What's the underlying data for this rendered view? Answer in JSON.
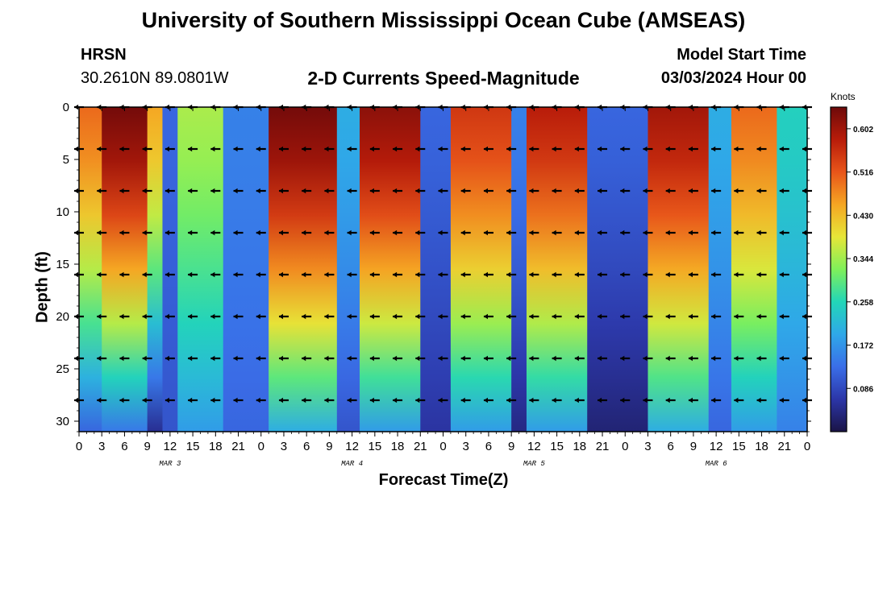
{
  "title": "University of Southern Mississippi Ocean Cube (AMSEAS)",
  "station": "HRSN",
  "coordinates": "30.2610N  89.0801W",
  "subtitle": "2-D Currents Speed-Magnitude",
  "model_start_label": "Model Start Time",
  "model_start_value": "03/03/2024 Hour 00",
  "chart_data": {
    "type": "heatmap",
    "title": "2-D Currents Speed-Magnitude",
    "xlabel": "Forecast Time(Z)",
    "ylabel": "Depth (ft)",
    "x_range_hours": [
      0,
      96
    ],
    "y_range_ft": [
      0,
      31
    ],
    "x_tick_labels": [
      "0",
      "3",
      "6",
      "9",
      "12",
      "15",
      "18",
      "21",
      "0",
      "3",
      "6",
      "9",
      "12",
      "15",
      "18",
      "21",
      "0",
      "3",
      "6",
      "9",
      "12",
      "15",
      "18",
      "21",
      "0",
      "3",
      "6",
      "9",
      "12",
      "15",
      "18",
      "21",
      "0"
    ],
    "y_tick_labels": [
      "0",
      "5",
      "10",
      "15",
      "20",
      "25",
      "30"
    ],
    "date_labels": [
      {
        "label": "MAR 3",
        "hour": 12
      },
      {
        "label": "MAR 4",
        "hour": 36
      },
      {
        "label": "MAR 5",
        "hour": 60
      },
      {
        "label": "MAR 6",
        "hour": 84
      }
    ],
    "colorbar": {
      "unit": "Knots",
      "range": [
        0.0,
        0.645
      ],
      "ticks": [
        "0.602",
        "0.516",
        "0.430",
        "0.344",
        "0.258",
        "0.172",
        "0.086"
      ],
      "tick_values": [
        0.602,
        0.516,
        0.43,
        0.344,
        0.258,
        0.172,
        0.086
      ]
    },
    "column_speed_profiles": [
      {
        "hour_start": 0,
        "hour_end": 3,
        "surface_kn": 0.5,
        "bottom_kn": 0.12
      },
      {
        "hour_start": 3,
        "hour_end": 9,
        "surface_kn": 0.64,
        "bottom_kn": 0.14
      },
      {
        "hour_start": 9,
        "hour_end": 11,
        "surface_kn": 0.45,
        "bottom_kn": 0.05
      },
      {
        "hour_start": 11,
        "hour_end": 13,
        "surface_kn": 0.12,
        "bottom_kn": 0.1
      },
      {
        "hour_start": 13,
        "hour_end": 19,
        "surface_kn": 0.35,
        "bottom_kn": 0.18
      },
      {
        "hour_start": 19,
        "hour_end": 25,
        "surface_kn": 0.15,
        "bottom_kn": 0.12
      },
      {
        "hour_start": 25,
        "hour_end": 34,
        "surface_kn": 0.64,
        "bottom_kn": 0.2
      },
      {
        "hour_start": 34,
        "hour_end": 37,
        "surface_kn": 0.2,
        "bottom_kn": 0.1
      },
      {
        "hour_start": 37,
        "hour_end": 45,
        "surface_kn": 0.62,
        "bottom_kn": 0.18
      },
      {
        "hour_start": 45,
        "hour_end": 49,
        "surface_kn": 0.12,
        "bottom_kn": 0.06
      },
      {
        "hour_start": 49,
        "hour_end": 57,
        "surface_kn": 0.55,
        "bottom_kn": 0.18
      },
      {
        "hour_start": 57,
        "hour_end": 59,
        "surface_kn": 0.15,
        "bottom_kn": 0.04
      },
      {
        "hour_start": 59,
        "hour_end": 67,
        "surface_kn": 0.58,
        "bottom_kn": 0.18
      },
      {
        "hour_start": 67,
        "hour_end": 75,
        "surface_kn": 0.12,
        "bottom_kn": 0.03
      },
      {
        "hour_start": 75,
        "hour_end": 83,
        "surface_kn": 0.6,
        "bottom_kn": 0.2
      },
      {
        "hour_start": 83,
        "hour_end": 86,
        "surface_kn": 0.2,
        "bottom_kn": 0.12
      },
      {
        "hour_start": 86,
        "hour_end": 92,
        "surface_kn": 0.5,
        "bottom_kn": 0.18
      },
      {
        "hour_start": 92,
        "hour_end": 96,
        "surface_kn": 0.25,
        "bottom_kn": 0.15
      }
    ],
    "vector_depths_ft": [
      0,
      4,
      8,
      12,
      16,
      20,
      24,
      28
    ],
    "vector_hours": [
      0,
      3,
      6,
      9,
      12,
      15,
      18,
      21,
      24,
      27,
      30,
      33,
      36,
      39,
      42,
      45,
      48,
      51,
      54,
      57,
      60,
      63,
      66,
      69,
      72,
      75,
      78,
      81,
      84,
      87,
      90,
      93,
      96
    ],
    "vector_direction_deg": 180
  },
  "colors": {
    "colormap": [
      "#1a1446",
      "#2c36a8",
      "#3a6ee8",
      "#2fa8e8",
      "#22d6b8",
      "#7ff05a",
      "#e6e638",
      "#f5a623",
      "#e8551a",
      "#b81c0a",
      "#6e0a0a"
    ],
    "arrow": "#000000",
    "frame": "#000000"
  }
}
